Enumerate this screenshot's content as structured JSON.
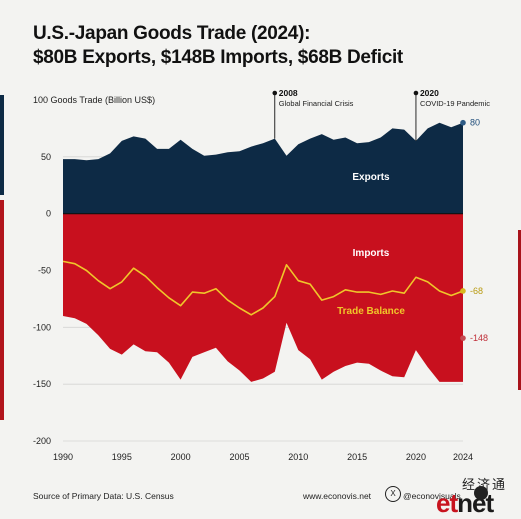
{
  "title_line1": "U.S.-Japan Goods Trade (2024):",
  "title_line2": "$80B Exports, $148B Imports, $68B Deficit",
  "footer": {
    "source": "Source of Primary Data: U.S. Census",
    "website": "www.econovis.net",
    "x_glyph": "X",
    "handle": "@econovisuals",
    "watermark_cn": "经济通",
    "watermark_logo_a": "et",
    "watermark_logo_b": "net"
  },
  "colors": {
    "exports": "#0d2a45",
    "imports": "#c8101e",
    "balance": "#f0c62a",
    "grid": "#d4d4d4",
    "zero_line": "#111111"
  },
  "chart_data": {
    "type": "area",
    "ylabel": "100 Goods Trade (Billion US$)",
    "ylim": [
      -200,
      100
    ],
    "yticks": [
      100,
      50,
      0,
      -50,
      -100,
      -150,
      -200
    ],
    "xlim": [
      1990,
      2024
    ],
    "xticks": [
      1990,
      1995,
      2000,
      2005,
      2010,
      2015,
      2020,
      2024
    ],
    "x": [
      1990,
      1991,
      1992,
      1993,
      1994,
      1995,
      1996,
      1997,
      1998,
      1999,
      2000,
      2001,
      2002,
      2003,
      2004,
      2005,
      2006,
      2007,
      2008,
      2009,
      2010,
      2011,
      2012,
      2013,
      2014,
      2015,
      2016,
      2017,
      2018,
      2019,
      2020,
      2021,
      2022,
      2023,
      2024
    ],
    "series": [
      {
        "name": "Exports",
        "values": [
          48,
          48,
          47,
          48,
          53,
          64,
          68,
          66,
          57,
          57,
          65,
          57,
          51,
          52,
          54,
          55,
          59,
          62,
          66,
          51,
          61,
          66,
          70,
          65,
          67,
          62,
          63,
          67,
          75,
          74,
          64,
          75,
          80,
          76,
          80
        ]
      },
      {
        "name": "Imports",
        "values": [
          -90,
          -92,
          -97,
          -107,
          -119,
          -124,
          -115,
          -121,
          -122,
          -131,
          -146,
          -126,
          -122,
          -118,
          -130,
          -138,
          -148,
          -145,
          -139,
          -96,
          -120,
          -128,
          -146,
          -139,
          -134,
          -131,
          -132,
          -138,
          -143,
          -144,
          -120,
          -135,
          -148,
          -148,
          -148
        ]
      },
      {
        "name": "Trade Balance",
        "values": [
          -42,
          -44,
          -50,
          -59,
          -66,
          -60,
          -48,
          -55,
          -65,
          -74,
          -81,
          -69,
          -70,
          -66,
          -76,
          -83,
          -89,
          -83,
          -73,
          -45,
          -59,
          -62,
          -76,
          -73,
          -67,
          -69,
          -69,
          -71,
          -68,
          -70,
          -56,
          -60,
          -68,
          -72,
          -68
        ]
      }
    ],
    "end_labels": {
      "exports": "80",
      "balance": "-68",
      "imports": "-148"
    },
    "series_labels": {
      "exports": "Exports",
      "imports": "Imports",
      "balance": "Trade Balance"
    },
    "annotations": [
      {
        "x": 2008,
        "year": "2008",
        "text": "Global Financial Crisis"
      },
      {
        "x": 2020,
        "year": "2020",
        "text": "COVID-19 Pandemic"
      }
    ]
  }
}
